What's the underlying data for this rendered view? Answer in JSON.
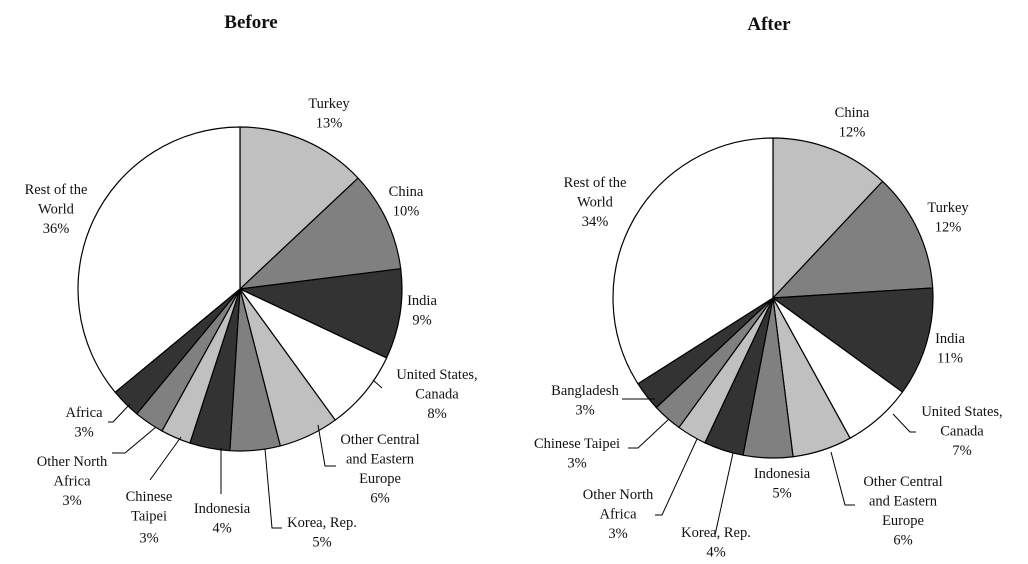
{
  "chart_data": [
    {
      "type": "pie",
      "title": "Before",
      "slices": [
        {
          "label": "Turkey",
          "value": 13,
          "value_label": "13%",
          "color": "#c0c0c0"
        },
        {
          "label": "China",
          "value": 10,
          "value_label": "10%",
          "color": "#808080"
        },
        {
          "label": "India",
          "value": 9,
          "value_label": "9%",
          "color": "#333333"
        },
        {
          "label": "United States, Canada",
          "value": 8,
          "value_label": "8%",
          "color": "#ffffff"
        },
        {
          "label": "Other Central and Eastern Europe",
          "value": 6,
          "value_label": "6%",
          "color": "#c0c0c0"
        },
        {
          "label": "Korea, Rep.",
          "value": 5,
          "value_label": "5%",
          "color": "#808080"
        },
        {
          "label": "Indonesia",
          "value": 4,
          "value_label": "4%",
          "color": "#333333"
        },
        {
          "label": "Chinese Taipei",
          "value": 3,
          "value_label": "3%",
          "color": "#c0c0c0"
        },
        {
          "label": "Other North Africa",
          "value": 3,
          "value_label": "3%",
          "color": "#808080"
        },
        {
          "label": "Africa",
          "value": 3,
          "value_label": "3%",
          "color": "#333333"
        },
        {
          "label": "Rest of the World",
          "value": 36,
          "value_label": "36%",
          "color": "#ffffff"
        }
      ]
    },
    {
      "type": "pie",
      "title": "After",
      "slices": [
        {
          "label": "China",
          "value": 12,
          "value_label": "12%",
          "color": "#c0c0c0"
        },
        {
          "label": "Turkey",
          "value": 12,
          "value_label": "12%",
          "color": "#808080"
        },
        {
          "label": "India",
          "value": 11,
          "value_label": "11%",
          "color": "#333333"
        },
        {
          "label": "United States, Canada",
          "value": 7,
          "value_label": "7%",
          "color": "#ffffff"
        },
        {
          "label": "Other Central and Eastern Europe",
          "value": 6,
          "value_label": "6%",
          "color": "#c0c0c0"
        },
        {
          "label": "Indonesia",
          "value": 5,
          "value_label": "5%",
          "color": "#808080"
        },
        {
          "label": "Korea, Rep.",
          "value": 4,
          "value_label": "4%",
          "color": "#333333"
        },
        {
          "label": "Other North Africa",
          "value": 3,
          "value_label": "3%",
          "color": "#c0c0c0"
        },
        {
          "label": "Chinese Taipei",
          "value": 3,
          "value_label": "3%",
          "color": "#808080"
        },
        {
          "label": "Bangladesh",
          "value": 3,
          "value_label": "3%",
          "color": "#333333"
        },
        {
          "label": "Rest of the World",
          "value": 34,
          "value_label": "34%",
          "color": "#ffffff"
        }
      ]
    }
  ]
}
